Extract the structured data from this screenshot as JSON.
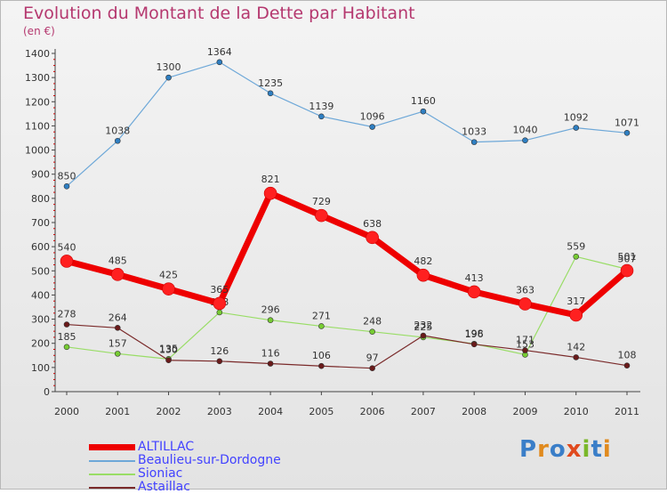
{
  "title": "Evolution du Montant de la Dette par Habitant",
  "subtitle": "(en €)",
  "logo": "Proxiti",
  "chart_data": {
    "type": "line",
    "title": "Evolution du Montant de la Dette par Habitant",
    "subtitle": "(en €)",
    "categories": [
      "2000",
      "2001",
      "2002",
      "2003",
      "2004",
      "2005",
      "2006",
      "2007",
      "2008",
      "2009",
      "2010",
      "2011"
    ],
    "ylim": [
      0,
      1400
    ],
    "yticks": [
      0,
      100,
      200,
      300,
      400,
      500,
      600,
      700,
      800,
      900,
      1000,
      1100,
      1200,
      1300,
      1400
    ],
    "grid": false,
    "legend_position": "bottom-left",
    "series": [
      {
        "name": "ALTILLAC",
        "color": "#ee0000",
        "width": 7,
        "marker": "#ff2020",
        "values": [
          540,
          485,
          425,
          365,
          821,
          729,
          638,
          482,
          413,
          363,
          317,
          501
        ]
      },
      {
        "name": "Beaulieu-sur-Dordogne",
        "color": "#6ea8d8",
        "width": 1.2,
        "marker": "#2f7fc2",
        "values": [
          850,
          1038,
          1300,
          1364,
          1235,
          1139,
          1096,
          1160,
          1033,
          1040,
          1092,
          1071
        ]
      },
      {
        "name": "Sioniac",
        "color": "#99dd66",
        "width": 1.2,
        "marker": "#77cc33",
        "values": [
          185,
          157,
          135,
          328,
          296,
          271,
          248,
          225,
          198,
          153,
          559,
          507
        ]
      },
      {
        "name": "Astaillac",
        "color": "#7a2a2a",
        "width": 1.2,
        "marker": "#6a1a1a",
        "values": [
          278,
          264,
          130,
          126,
          116,
          106,
          97,
          232,
          196,
          171,
          142,
          108
        ]
      }
    ]
  }
}
